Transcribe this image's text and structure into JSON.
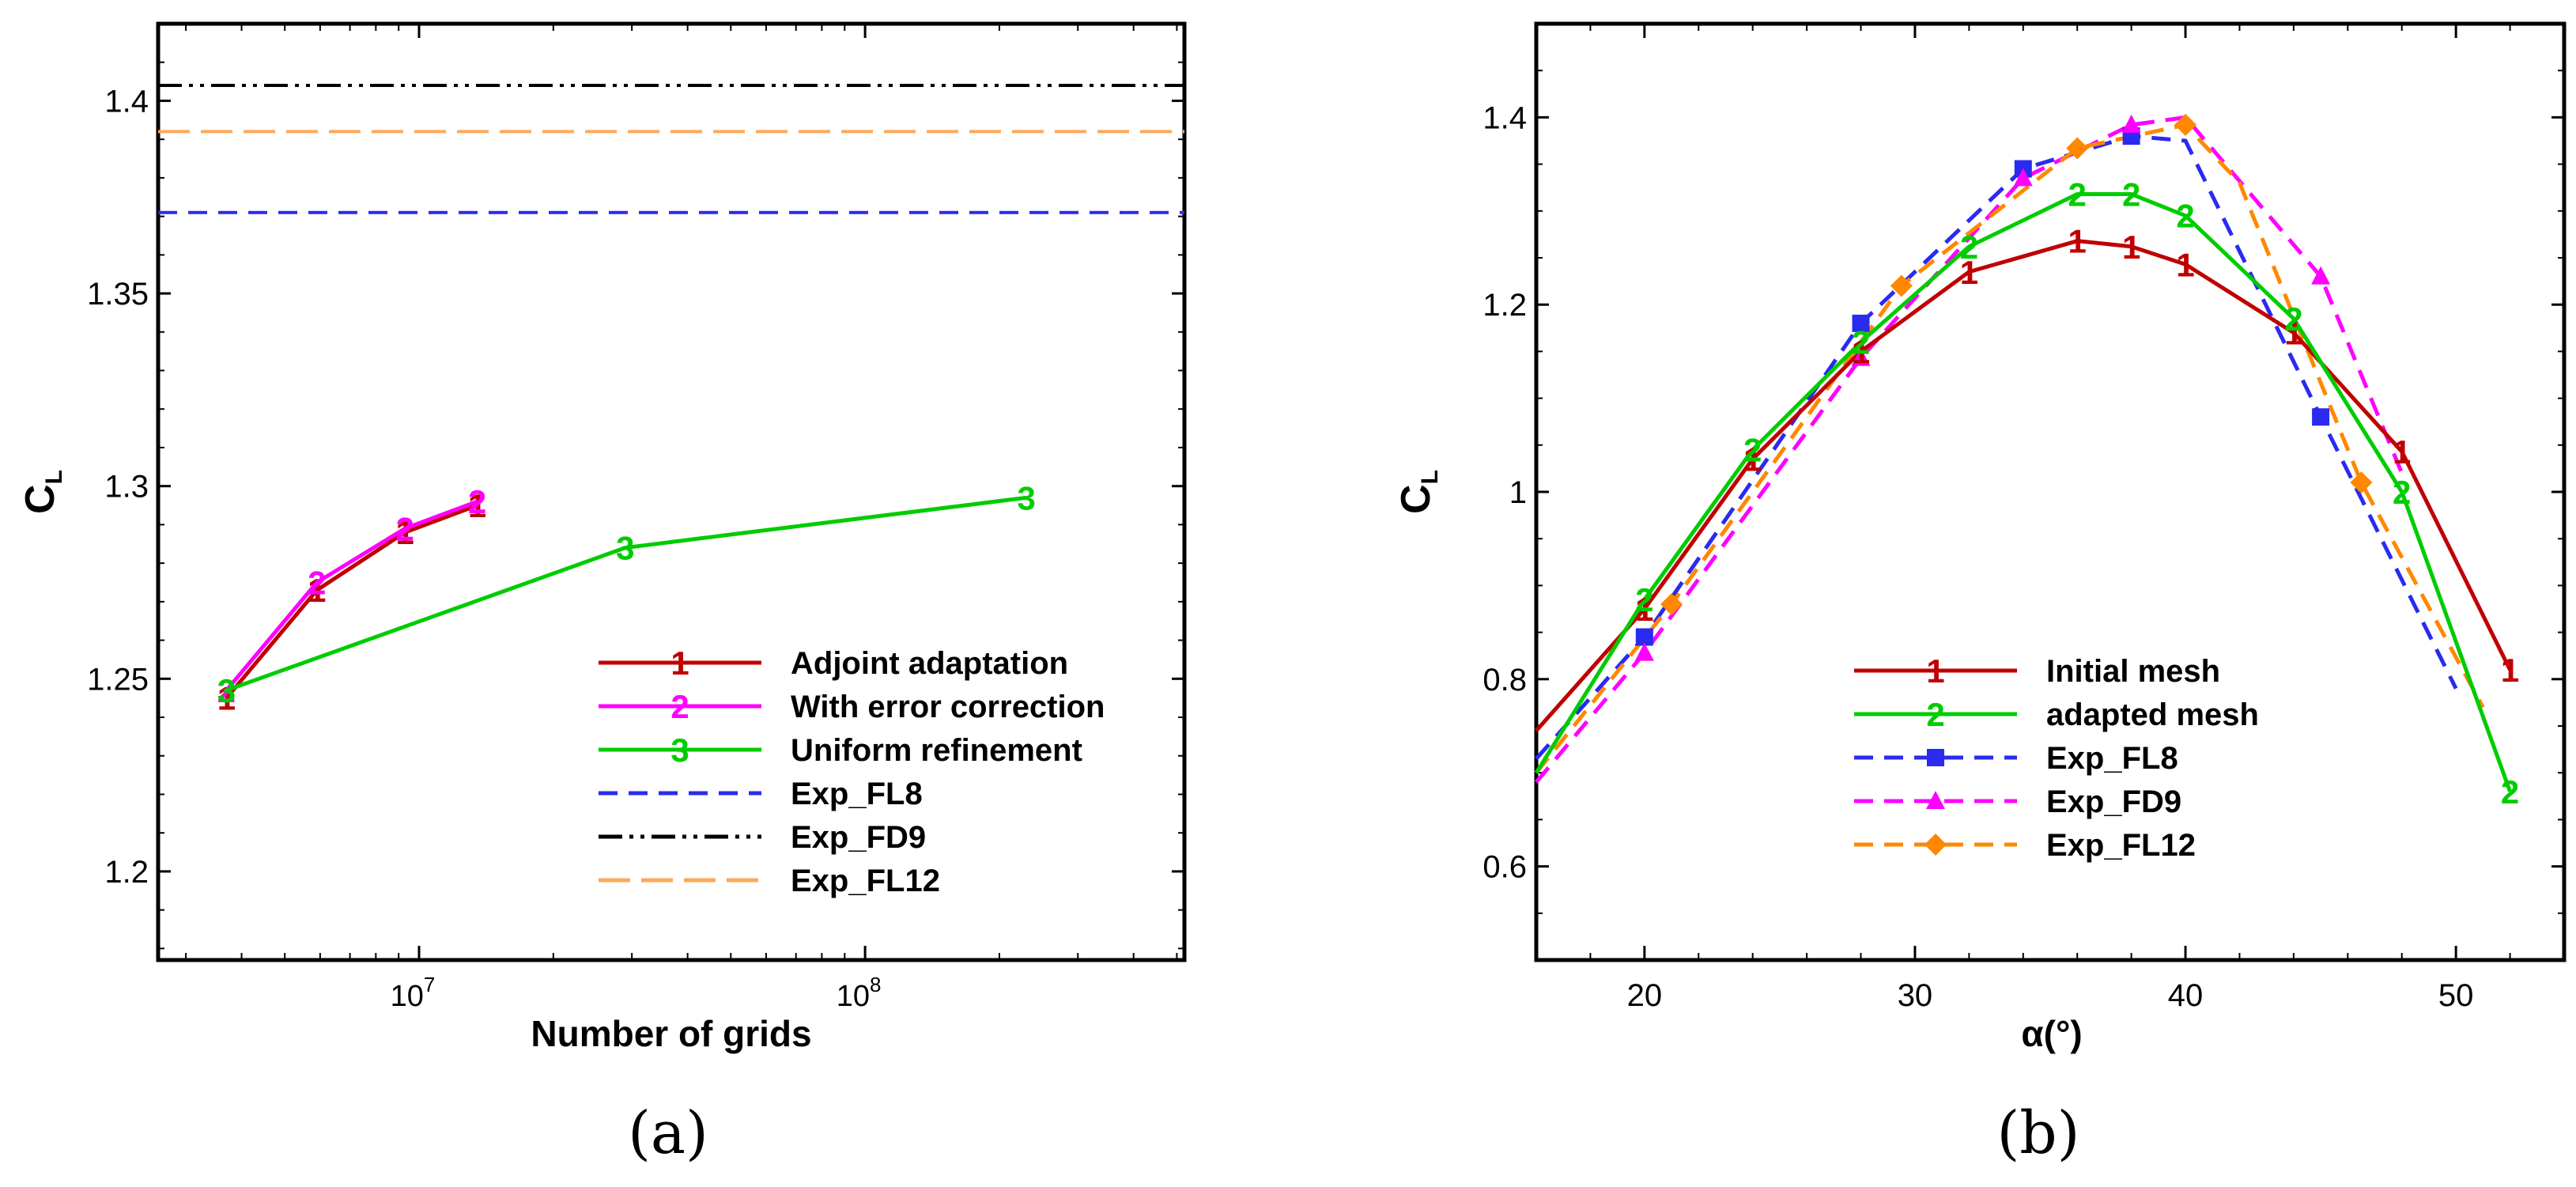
{
  "chart_data": [
    {
      "type": "line",
      "panel_label": "(a)",
      "xlabel": "Number of grids",
      "ylabel_main": "C",
      "ylabel_sub": "L",
      "xscale": "log",
      "xlim": [
        2600000,
        520000000
      ],
      "ylim": [
        1.177,
        1.42
      ],
      "yticks": [
        "1.2",
        "1.25",
        "1.3",
        "1.35",
        "1.4"
      ],
      "xticks_base": [
        "10",
        "10"
      ],
      "xticks_exp": [
        "7",
        "8"
      ],
      "series": [
        {
          "name": "Adjoint adaptation",
          "marker": "1",
          "color": "#c00000",
          "x": [
            3700000,
            5900000,
            9300000,
            13500000
          ],
          "y": [
            1.245,
            1.273,
            1.288,
            1.295
          ]
        },
        {
          "name": "With error correction",
          "marker": "2",
          "color": "#ff00ff",
          "x": [
            3700000,
            5900000,
            9300000,
            13500000
          ],
          "y": [
            1.247,
            1.275,
            1.289,
            1.296
          ]
        },
        {
          "name": "Uniform refinement",
          "marker": "3",
          "color": "#00cc00",
          "x": [
            3700000,
            29000000,
            230000000
          ],
          "y": [
            1.247,
            1.284,
            1.297
          ]
        }
      ],
      "reference_lines": [
        {
          "name": "Exp_FL8",
          "color": "#2a2af0",
          "y": 1.371,
          "style": "dash"
        },
        {
          "name": "Exp_FD9",
          "color": "#000000",
          "y": 1.404,
          "style": "dashdotdot"
        },
        {
          "name": "Exp_FL12",
          "color": "#ffa858",
          "y": 1.392,
          "style": "longdash"
        }
      ]
    },
    {
      "type": "line",
      "panel_label": "(b)",
      "xlabel": "α(°)",
      "ylabel_main": "C",
      "ylabel_sub": "L",
      "xlim": [
        16,
        54
      ],
      "ylim": [
        0.5,
        1.5
      ],
      "xticks": [
        "20",
        "30",
        "40",
        "50"
      ],
      "yticks": [
        "0.6",
        "0.8",
        "1",
        "1.2",
        "1.4"
      ],
      "series": [
        {
          "name": "Initial mesh",
          "marker": "1",
          "color": "#c00000",
          "dash": "solid",
          "x": [
            16,
            20,
            24,
            28,
            32,
            36,
            38,
            40,
            44,
            48,
            52
          ],
          "y": [
            0.745,
            0.875,
            1.035,
            1.15,
            1.235,
            1.268,
            1.262,
            1.243,
            1.17,
            1.043,
            0.81
          ]
        },
        {
          "name": "adapted mesh",
          "marker": "2",
          "color": "#00cc00",
          "dash": "solid",
          "x": [
            16,
            20,
            24,
            28,
            32,
            36,
            38,
            40,
            44,
            48,
            52
          ],
          "y": [
            0.7,
            0.885,
            1.045,
            1.16,
            1.262,
            1.318,
            1.318,
            1.295,
            1.185,
            1.0,
            0.68
          ]
        },
        {
          "name": "Exp_FL8",
          "marker": "square",
          "color": "#2a2af0",
          "dash": "dash",
          "x": [
            16,
            20,
            28,
            34,
            38,
            40,
            45,
            50
          ],
          "y": [
            0.715,
            0.845,
            1.18,
            1.345,
            1.38,
            1.375,
            1.08,
            0.79
          ],
          "marked": [
            20,
            28,
            34,
            38,
            45
          ]
        },
        {
          "name": "Exp_FD9",
          "marker": "triangle",
          "color": "#ff00ff",
          "dash": "dash",
          "x": [
            16,
            20,
            28,
            34,
            38,
            40,
            45,
            48
          ],
          "y": [
            0.69,
            0.828,
            1.143,
            1.335,
            1.392,
            1.4,
            1.23,
            1.02
          ],
          "marked": [
            20,
            28,
            34,
            38,
            45
          ]
        },
        {
          "name": "Exp_FL12",
          "marker": "diamond",
          "color": "#ff8800",
          "dash": "dash",
          "x": [
            16,
            21,
            29.5,
            36,
            40,
            42,
            46.5,
            51
          ],
          "y": [
            0.7,
            0.88,
            1.22,
            1.367,
            1.392,
            1.33,
            1.01,
            0.77
          ],
          "marked": [
            21,
            29.5,
            36,
            40,
            46.5
          ]
        }
      ]
    }
  ]
}
